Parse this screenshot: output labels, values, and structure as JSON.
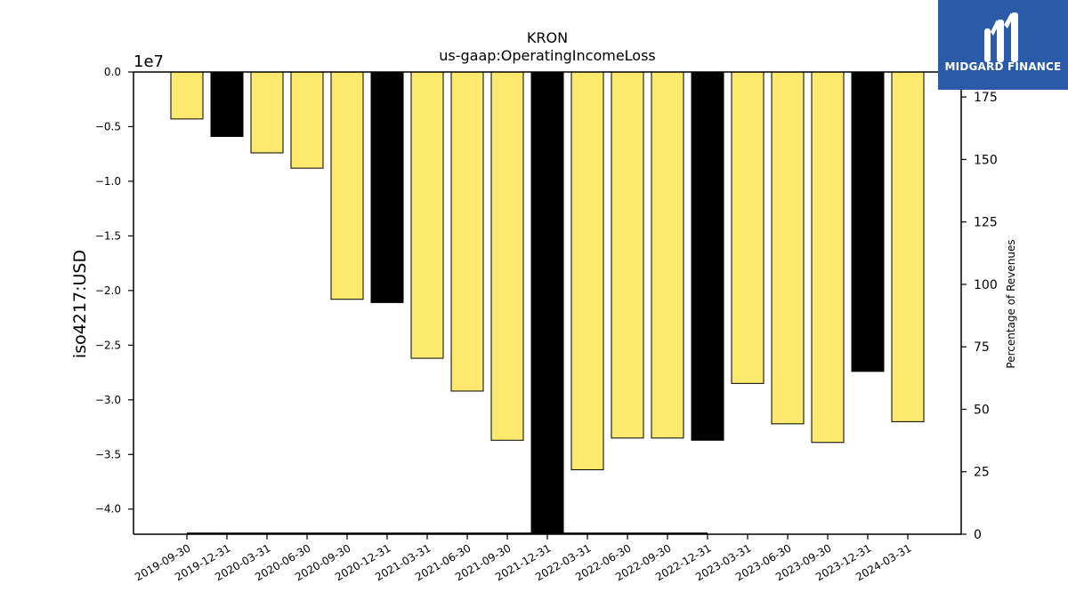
{
  "chart_data": {
    "type": "bar",
    "title": "KRON",
    "subtitle": "us-gaap:OperatingIncomeLoss",
    "ylabel": "iso4217:USD",
    "y_offset_label": "1e7",
    "ylabel_right": "Percentage of Revenues",
    "ylim": [
      -42300000,
      0
    ],
    "ylim_right": [
      0,
      185
    ],
    "yticks": [
      {
        "value": 0,
        "label": "0.0"
      },
      {
        "value": -5000000,
        "label": "−0.5"
      },
      {
        "value": -10000000,
        "label": "−1.0"
      },
      {
        "value": -15000000,
        "label": "−1.5"
      },
      {
        "value": -20000000,
        "label": "−2.0"
      },
      {
        "value": -25000000,
        "label": "−2.5"
      },
      {
        "value": -30000000,
        "label": "−3.0"
      },
      {
        "value": -35000000,
        "label": "−3.5"
      },
      {
        "value": -40000000,
        "label": "−4.0"
      }
    ],
    "yticks_right": [
      0,
      25,
      50,
      75,
      100,
      125,
      150,
      175
    ],
    "categories": [
      "2019-09-30",
      "2019-12-31",
      "2020-03-31",
      "2020-06-30",
      "2020-09-30",
      "2020-12-31",
      "2021-03-31",
      "2021-06-30",
      "2021-09-30",
      "2021-12-31",
      "2022-03-31",
      "2022-06-30",
      "2022-09-30",
      "2022-12-31",
      "2023-03-31",
      "2023-06-30",
      "2023-09-30",
      "2023-12-31",
      "2024-03-31"
    ],
    "values": [
      -4300000,
      -5900000,
      -7400000,
      -8800000,
      -20800000,
      -21100000,
      -26200000,
      -29200000,
      -33700000,
      -42300000,
      -36400000,
      -33500000,
      -33500000,
      -33700000,
      -28500000,
      -32200000,
      -33900000,
      -27400000,
      -32000000
    ],
    "bar_colors": [
      "#fde96e",
      "#000000",
      "#fde96e",
      "#fde96e",
      "#fde96e",
      "#000000",
      "#fde96e",
      "#fde96e",
      "#fde96e",
      "#000000",
      "#fde96e",
      "#fde96e",
      "#fde96e",
      "#000000",
      "#fde96e",
      "#fde96e",
      "#fde96e",
      "#000000",
      "#fde96e"
    ],
    "percentage_line": {
      "x_start": "2019-09-30",
      "x_end": "2022-12-31",
      "value": 0.3
    },
    "colors": {
      "quarter": "#fde96e",
      "year_end": "#000000",
      "line": "#000000"
    }
  },
  "logo": {
    "text": "MIDGARD FINANCE",
    "background": "#2a5aa8"
  }
}
